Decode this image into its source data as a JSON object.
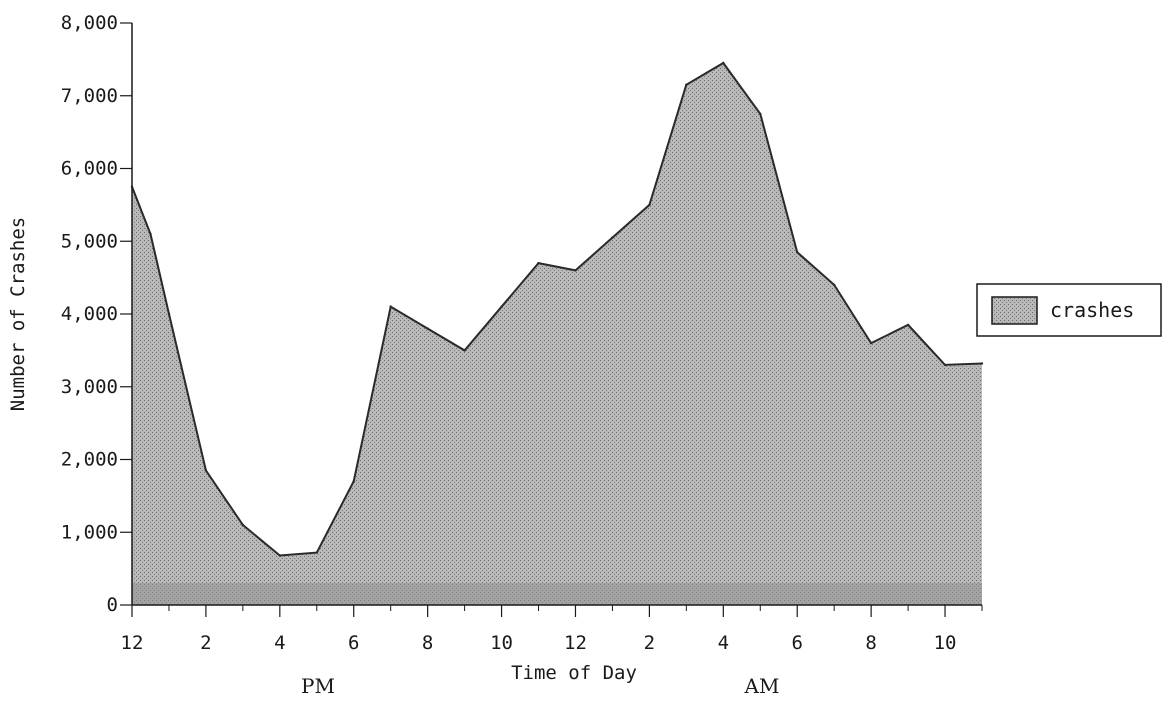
{
  "chart_data": {
    "type": "area",
    "title": "",
    "xlabel": "Time of Day",
    "ylabel": "Number of Crashes",
    "ylim": [
      0,
      8000
    ],
    "yticks": [
      0,
      1000,
      2000,
      3000,
      4000,
      5000,
      6000,
      7000,
      8000
    ],
    "ytick_labels": [
      "0",
      "1,000",
      "2,000",
      "3,000",
      "4,000",
      "5,000",
      "6,000",
      "7,000",
      "8,000"
    ],
    "x_hours": [
      0,
      23
    ],
    "xtick_labels": [
      "12",
      "2",
      "4",
      "6",
      "8",
      "10",
      "12",
      "2",
      "4",
      "6",
      "8",
      "10"
    ],
    "period_labels": [
      "PM",
      "AM"
    ],
    "grid": false,
    "legend_position": "right",
    "fill_color": "#a8a8a8",
    "series": [
      {
        "name": "crashes",
        "x": [
          0,
          0.5,
          1,
          2,
          3,
          4,
          5,
          6,
          7,
          8,
          9,
          10,
          11,
          12,
          13,
          14,
          15,
          16,
          17,
          18,
          19,
          20,
          21,
          22,
          23
        ],
        "values": [
          5750,
          5100,
          4000,
          1850,
          1100,
          680,
          720,
          1700,
          4100,
          3800,
          3500,
          4100,
          4700,
          4600,
          5050,
          5500,
          7150,
          7450,
          6750,
          4850,
          4400,
          3600,
          3850,
          3300,
          3320
        ]
      }
    ]
  }
}
